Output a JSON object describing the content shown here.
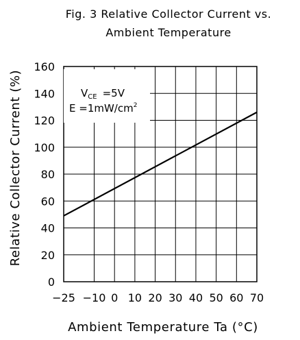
{
  "chart_data": {
    "type": "line",
    "title_line1": "Fig. 3 Relative Collector Current vs.",
    "title_line2": "Ambient Temperature",
    "xlabel": "Ambient Temperature Ta (°C)",
    "ylabel": "Relative Collector Current (%)",
    "xlim": [
      -25,
      70
    ],
    "ylim": [
      0,
      160
    ],
    "x_grid": [
      -10,
      0,
      10,
      20,
      30,
      40,
      50,
      60,
      70
    ],
    "y_grid": [
      0,
      20,
      40,
      60,
      80,
      100,
      120,
      140,
      160
    ],
    "x_tick_labels": [
      "-25",
      "-10",
      "0",
      "10",
      "20",
      "30",
      "40",
      "50",
      "60",
      "70"
    ],
    "y_tick_labels": [
      "0",
      "20",
      "40",
      "60",
      "80",
      "100",
      "120",
      "140",
      "160"
    ],
    "grid": true,
    "conditions": {
      "vce_symbol": "V",
      "vce_subscript": "CE",
      "vce_value": "=5V",
      "e_line": "E =1mW/cm",
      "e_superscript": "2"
    },
    "series": [
      {
        "x": [
          -25,
          70
        ],
        "y": [
          49,
          126
        ]
      }
    ],
    "colors": {
      "line": "#000000",
      "grid": "#000000",
      "background": "#ffffff"
    }
  }
}
